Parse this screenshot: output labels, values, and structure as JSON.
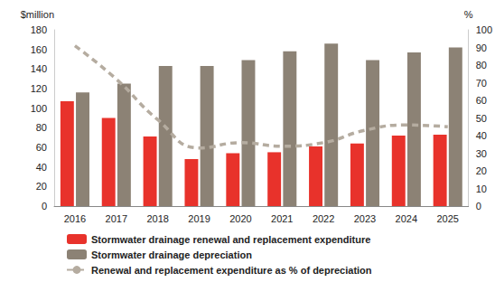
{
  "chart_data": {
    "type": "bar",
    "categories": [
      "2016",
      "2017",
      "2018",
      "2019",
      "2020",
      "2021",
      "2022",
      "2023",
      "2024",
      "2025"
    ],
    "y_label": "$million",
    "y2_label": "%",
    "ylim": [
      0,
      180
    ],
    "yticks": [
      0,
      20,
      40,
      60,
      80,
      100,
      120,
      140,
      160,
      180
    ],
    "y2lim": [
      0,
      100
    ],
    "y2ticks": [
      0,
      10,
      20,
      30,
      40,
      50,
      60,
      70,
      80,
      90,
      100
    ],
    "grid": false,
    "legend": "bottom",
    "series": [
      {
        "name": "Stormwater drainage renewal and replacement expenditure",
        "type": "bar",
        "color": "#e8322b",
        "values": [
          107,
          90,
          71,
          48,
          54,
          55,
          61,
          64,
          72,
          73
        ]
      },
      {
        "name": "Stormwater drainage depreciation",
        "type": "bar",
        "color": "#8c8275",
        "values": [
          116,
          125,
          143,
          143,
          149,
          158,
          166,
          149,
          157,
          162
        ]
      },
      {
        "name": "Renewal and replacement expenditure as % of depreciation",
        "type": "line",
        "axis": "y2",
        "color": "#b5aca0",
        "line_style": "dashed",
        "marker": "none",
        "values": [
          91,
          72,
          49,
          33,
          36,
          34,
          36,
          43,
          46,
          45
        ]
      }
    ]
  }
}
